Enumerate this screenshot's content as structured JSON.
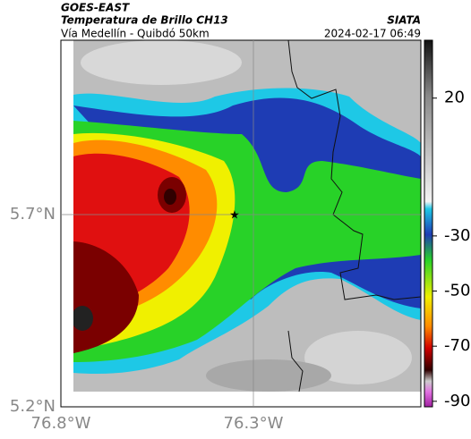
{
  "header": {
    "satellite": "GOES-EAST",
    "product": "Temperatura de Brillo CH13",
    "source": "SIATA",
    "route": "Vía Medellín - Quibdó 50km",
    "timestamp": "2024-02-17 06:49"
  },
  "axes": {
    "lat_ticks": [
      "5.7°N",
      "5.2°N"
    ],
    "lon_ticks": [
      "76.8°W",
      "76.3°W"
    ]
  },
  "colorbar": {
    "range": [
      -92,
      41
    ],
    "ticks": [
      20,
      -30,
      -50,
      -70,
      -90
    ]
  }
}
